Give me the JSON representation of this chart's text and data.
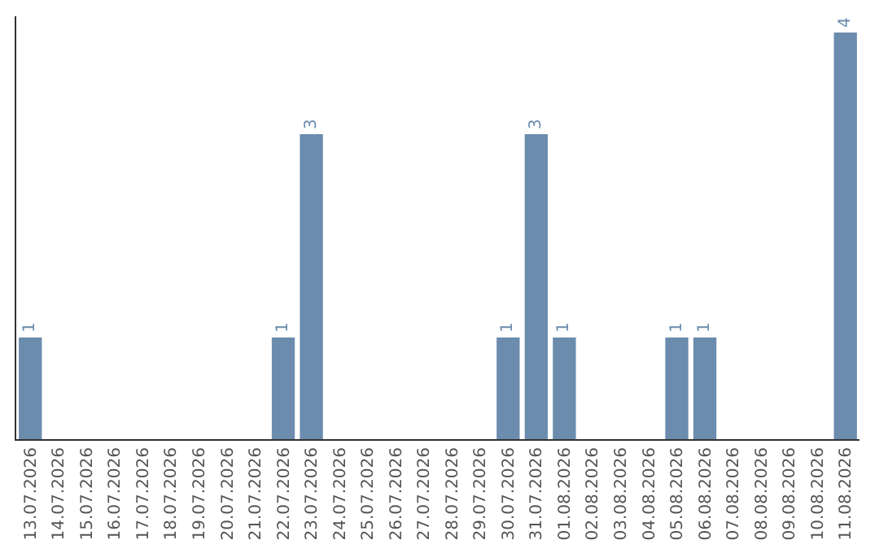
{
  "chart_data": {
    "type": "bar",
    "categories": [
      "13.07.2026",
      "14.07.2026",
      "15.07.2026",
      "16.07.2026",
      "17.07.2026",
      "18.07.2026",
      "19.07.2026",
      "20.07.2026",
      "21.07.2026",
      "22.07.2026",
      "23.07.2026",
      "24.07.2026",
      "25.07.2026",
      "26.07.2026",
      "27.07.2026",
      "28.07.2026",
      "29.07.2026",
      "30.07.2026",
      "31.07.2026",
      "01.08.2026",
      "02.08.2026",
      "03.08.2026",
      "04.08.2026",
      "05.08.2026",
      "06.08.2026",
      "07.08.2026",
      "08.08.2026",
      "09.08.2026",
      "10.08.2026",
      "11.08.2026"
    ],
    "values": [
      1,
      0,
      0,
      0,
      0,
      0,
      0,
      0,
      0,
      1,
      3,
      0,
      0,
      0,
      0,
      0,
      0,
      1,
      3,
      1,
      0,
      0,
      0,
      1,
      1,
      0,
      0,
      0,
      0,
      4
    ],
    "value_labels": [
      "1",
      null,
      null,
      null,
      null,
      null,
      null,
      null,
      null,
      "1",
      "3",
      null,
      null,
      null,
      null,
      null,
      null,
      "1",
      "3",
      "1",
      null,
      null,
      null,
      "1",
      "1",
      null,
      null,
      null,
      null,
      "4"
    ],
    "color": "#6b8cad",
    "grid": false,
    "legend": false
  }
}
